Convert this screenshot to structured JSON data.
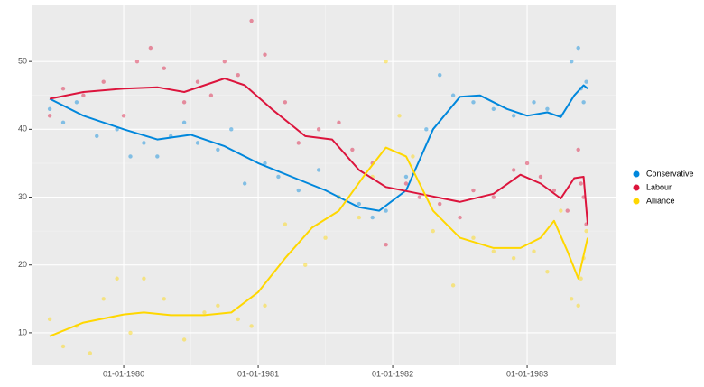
{
  "chart_data": {
    "type": "scatter",
    "xlim": [
      1979.315,
      1983.664
    ],
    "xticks": [
      {
        "value": 1980,
        "label": "01-01-1980"
      },
      {
        "value": 1981,
        "label": "01-01-1981"
      },
      {
        "value": 1982,
        "label": "01-01-1982"
      },
      {
        "value": 1983,
        "label": "01-01-1983"
      }
    ],
    "ylim": [
      5.2,
      58.4
    ],
    "yticks": [
      10,
      20,
      30,
      40,
      50
    ],
    "grid": true,
    "legend": "right",
    "series": [
      {
        "name": "Conservative",
        "color": "#0087DC",
        "x": [
          1979.45,
          1979.55,
          1979.65,
          1979.8,
          1979.95,
          1980.05,
          1980.15,
          1980.25,
          1980.35,
          1980.45,
          1980.55,
          1980.7,
          1980.8,
          1980.9,
          1981.05,
          1981.15,
          1981.3,
          1981.45,
          1981.6,
          1981.75,
          1981.85,
          1981.95,
          1982.1,
          1982.25,
          1982.35,
          1982.45,
          1982.6,
          1982.75,
          1982.9,
          1983.05,
          1983.15,
          1983.25,
          1983.33,
          1983.38,
          1983.4,
          1983.42,
          1983.44
        ],
        "values": [
          43,
          41,
          44,
          39,
          40,
          36,
          38,
          36,
          39,
          41,
          38,
          37,
          40,
          32,
          35,
          33,
          31,
          34,
          30,
          29,
          27,
          28,
          33,
          40,
          48,
          45,
          44,
          43,
          42,
          44,
          43,
          42,
          50,
          52,
          46,
          44,
          47
        ]
      },
      {
        "name": "Labour",
        "color": "#DC143C",
        "x": [
          1979.45,
          1979.55,
          1979.7,
          1979.85,
          1980.0,
          1980.1,
          1980.2,
          1980.3,
          1980.45,
          1980.55,
          1980.65,
          1980.75,
          1980.85,
          1980.95,
          1981.05,
          1981.2,
          1981.3,
          1981.45,
          1981.6,
          1981.7,
          1981.85,
          1981.95,
          1982.1,
          1982.2,
          1982.35,
          1982.5,
          1982.6,
          1982.75,
          1982.9,
          1983.0,
          1983.1,
          1983.2,
          1983.3,
          1983.38,
          1983.4,
          1983.42,
          1983.44
        ],
        "values": [
          42,
          46,
          45,
          47,
          42,
          50,
          52,
          49,
          44,
          47,
          45,
          50,
          48,
          56,
          51,
          44,
          38,
          40,
          41,
          37,
          35,
          23,
          32,
          30,
          29,
          27,
          31,
          30,
          34,
          35,
          33,
          31,
          28,
          37,
          32,
          30,
          26
        ]
      },
      {
        "name": "Alliance",
        "color": "#FFD700",
        "x": [
          1979.45,
          1979.55,
          1979.65,
          1979.75,
          1979.85,
          1979.95,
          1980.05,
          1980.15,
          1980.3,
          1980.45,
          1980.6,
          1980.7,
          1980.85,
          1980.95,
          1981.05,
          1981.2,
          1981.35,
          1981.5,
          1981.6,
          1981.75,
          1981.85,
          1981.95,
          1982.05,
          1982.15,
          1982.3,
          1982.45,
          1982.6,
          1982.75,
          1982.9,
          1983.05,
          1983.15,
          1983.25,
          1983.33,
          1983.38,
          1983.4,
          1983.42,
          1983.44
        ],
        "values": [
          12,
          8,
          11,
          7,
          15,
          18,
          10,
          18,
          15,
          9,
          13,
          14,
          12,
          11,
          14,
          26,
          20,
          24,
          30,
          27,
          33,
          50,
          42,
          36,
          25,
          17,
          24,
          22,
          21,
          22,
          19,
          28,
          15,
          14,
          18,
          21,
          25
        ]
      }
    ],
    "smooth": [
      {
        "x": [
          1979.45,
          1979.7,
          1980.0,
          1980.25,
          1980.5,
          1980.75,
          1981.0,
          1981.25,
          1981.5,
          1981.75,
          1981.9,
          1982.1,
          1982.3,
          1982.5,
          1982.65,
          1982.85,
          1983.0,
          1983.15,
          1983.25,
          1983.35,
          1983.42,
          1983.45
        ],
        "values": [
          44.5,
          42,
          40,
          38.5,
          39.2,
          37.5,
          35,
          33,
          31,
          28.5,
          28,
          31,
          40,
          44.8,
          45,
          43,
          42,
          42.5,
          41.8,
          45,
          46.5,
          46
        ]
      },
      {
        "x": [
          1979.45,
          1979.7,
          1980.0,
          1980.25,
          1980.45,
          1980.6,
          1980.75,
          1980.9,
          1981.1,
          1981.35,
          1981.55,
          1981.75,
          1981.95,
          1982.2,
          1982.5,
          1982.75,
          1982.95,
          1983.1,
          1983.25,
          1983.35,
          1983.42,
          1983.45
        ],
        "values": [
          44.5,
          45.5,
          46,
          46.2,
          45.5,
          46.5,
          47.5,
          46.5,
          43,
          39,
          38.5,
          34,
          31.5,
          30.5,
          29.3,
          30.5,
          33.3,
          32,
          29.8,
          32.8,
          33,
          26
        ]
      },
      {
        "x": [
          1979.45,
          1979.7,
          1980.0,
          1980.15,
          1980.35,
          1980.6,
          1980.8,
          1981.0,
          1981.2,
          1981.4,
          1981.6,
          1981.8,
          1981.95,
          1982.1,
          1982.3,
          1982.5,
          1982.75,
          1982.95,
          1983.1,
          1983.2,
          1983.3,
          1983.38,
          1983.45
        ],
        "values": [
          9.5,
          11.5,
          12.7,
          13,
          12.6,
          12.6,
          13,
          16,
          21,
          25.5,
          28,
          33.5,
          37.3,
          36,
          28,
          24,
          22.5,
          22.5,
          24,
          26.5,
          22,
          18,
          24
        ]
      }
    ]
  }
}
